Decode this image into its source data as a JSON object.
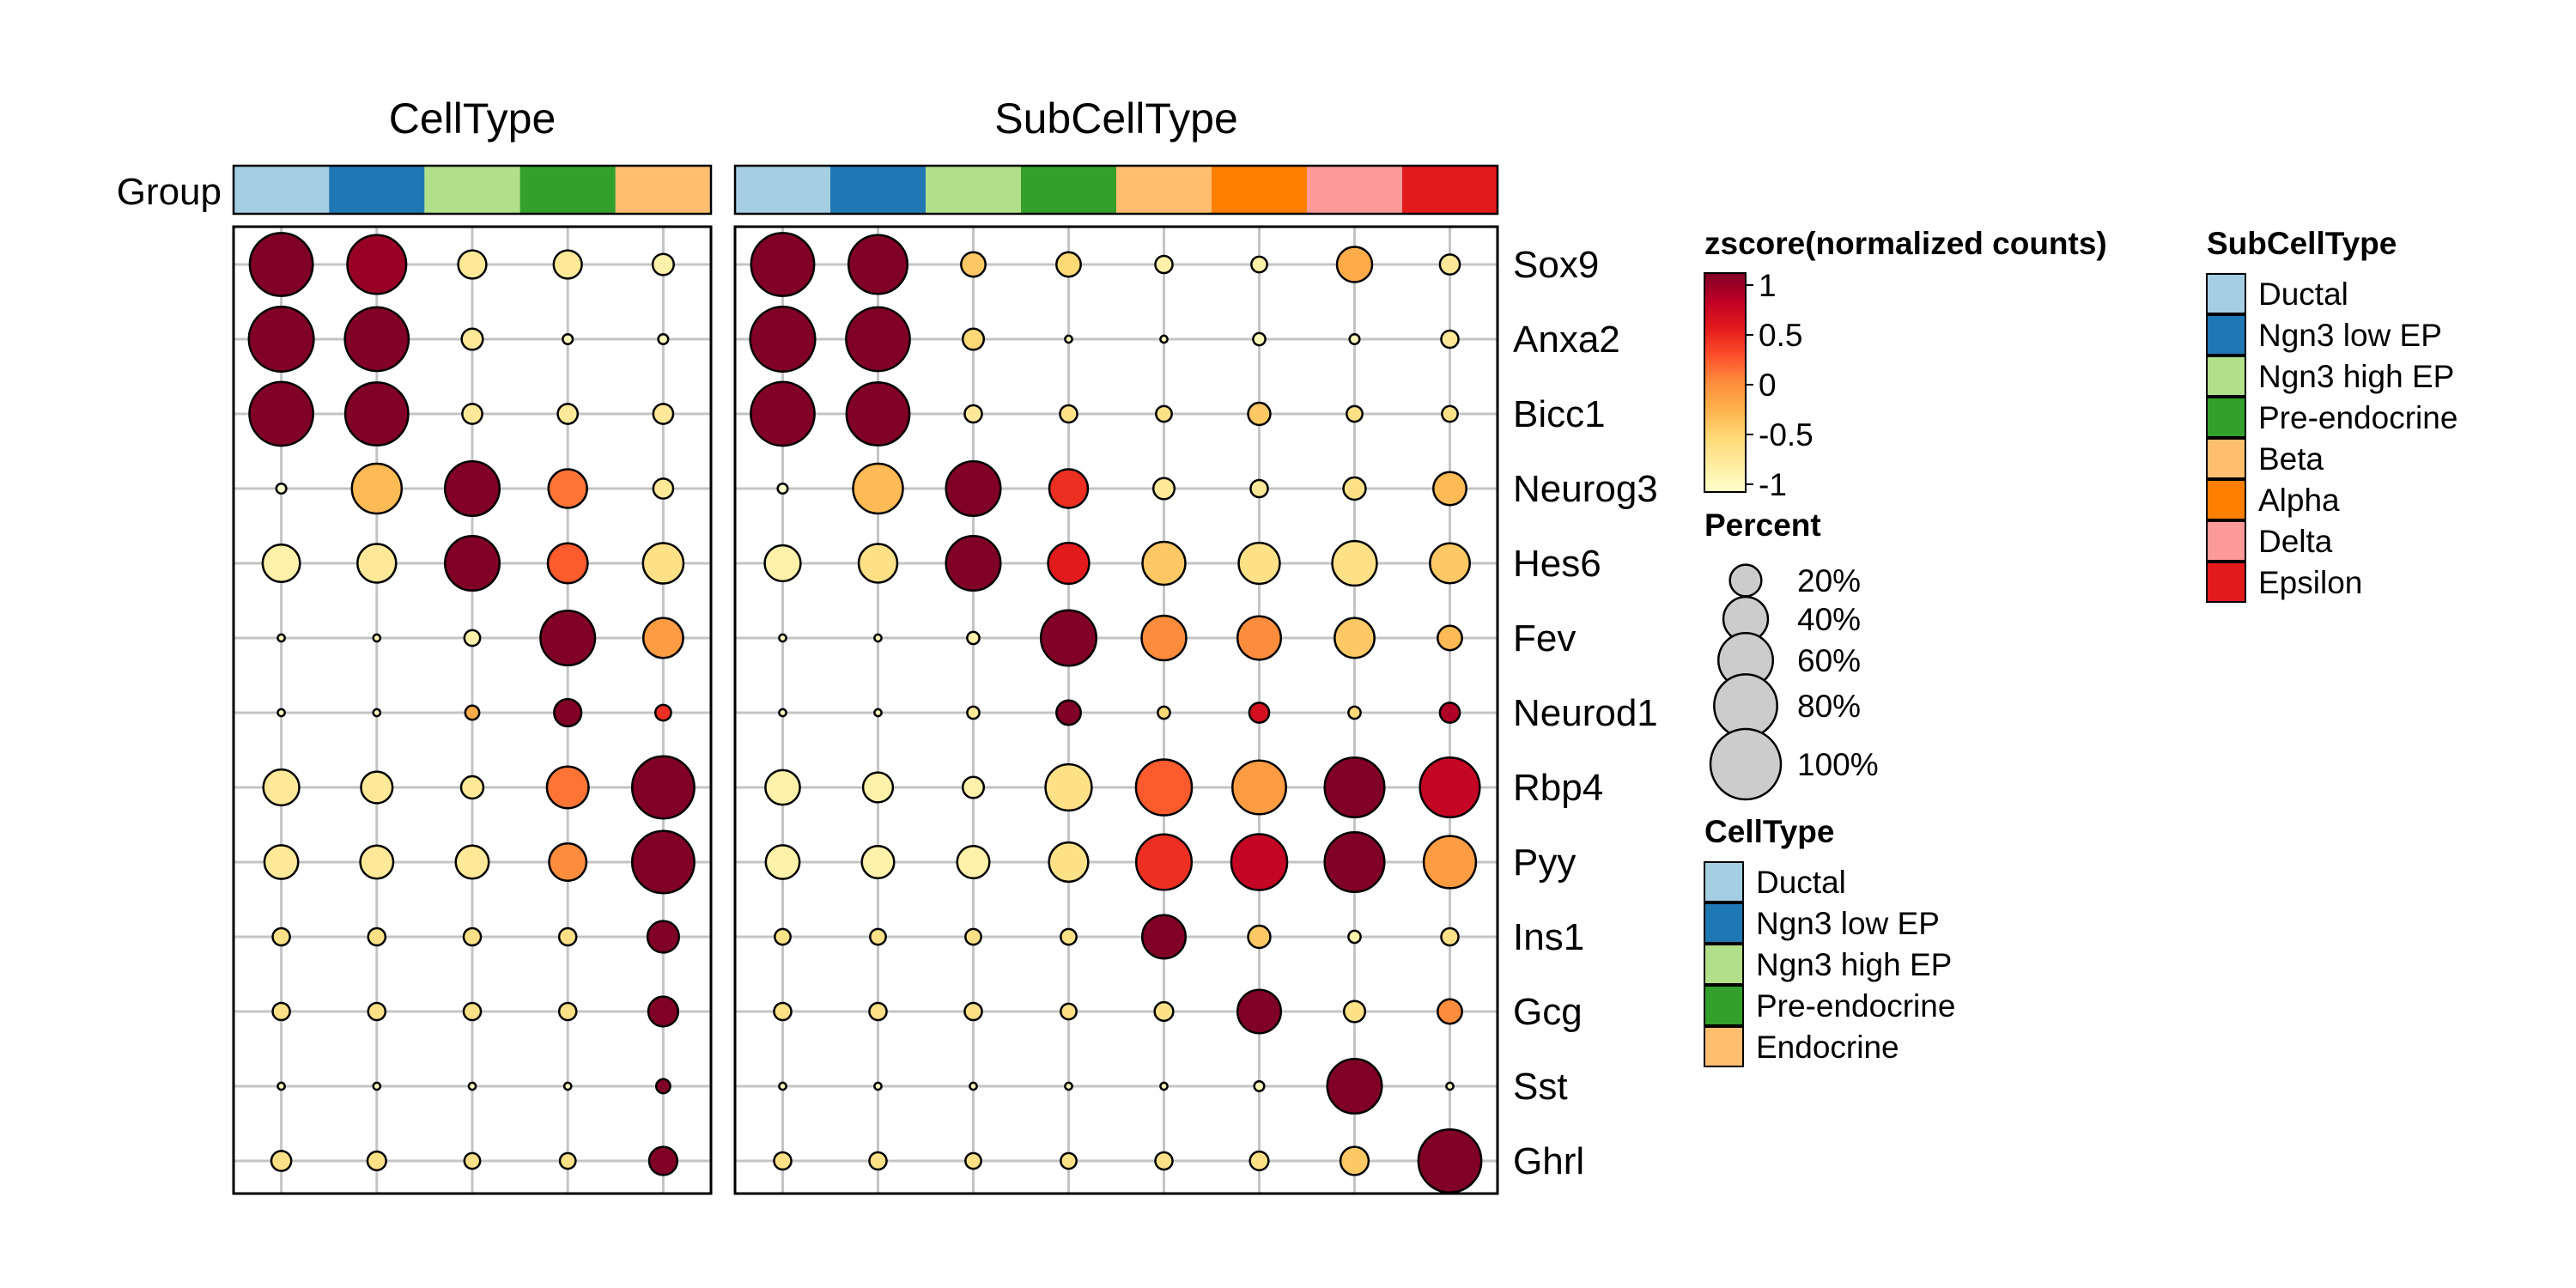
{
  "chart_data": {
    "type": "dotplot",
    "row_annotation_label": "Group",
    "genes": [
      "Sox9",
      "Anxa2",
      "Bicc1",
      "Neurog3",
      "Hes6",
      "Fev",
      "Neurod1",
      "Rbp4",
      "Pyy",
      "Ins1",
      "Gcg",
      "Sst",
      "Ghrl"
    ],
    "panels": [
      {
        "title": "CellType",
        "groups": [
          "Ductal",
          "Ngn3 low EP",
          "Ngn3 high EP",
          "Pre-endocrine",
          "Endocrine"
        ],
        "group_colors": [
          "#A6CEE3",
          "#1F78B4",
          "#B2DF8A",
          "#33A02C",
          "#FDBF6F"
        ],
        "percent": [
          [
            80,
            70,
            16,
            16,
            9
          ],
          [
            85,
            82,
            9,
            2,
            2
          ],
          [
            82,
            80,
            8,
            8,
            8
          ],
          [
            2,
            50,
            60,
            30,
            8
          ],
          [
            28,
            30,
            60,
            32,
            33
          ],
          [
            1,
            1,
            5,
            60,
            32
          ],
          [
            1,
            1,
            4,
            15,
            5
          ],
          [
            26,
            20,
            10,
            35,
            78
          ],
          [
            23,
            22,
            22,
            28,
            78
          ],
          [
            6,
            6,
            6,
            6,
            20
          ],
          [
            6,
            6,
            6,
            6,
            18
          ],
          [
            1,
            1,
            1,
            1,
            4
          ],
          [
            8,
            7,
            5,
            5,
            16
          ]
        ],
        "zscore": [
          [
            1.0,
            0.9,
            -0.7,
            -0.7,
            -0.8
          ],
          [
            1.0,
            1.0,
            -0.7,
            -0.9,
            -0.9
          ],
          [
            1.0,
            1.0,
            -0.7,
            -0.7,
            -0.7
          ],
          [
            -1.0,
            -0.3,
            1.0,
            0.1,
            -0.7
          ],
          [
            -0.8,
            -0.7,
            1.0,
            0.2,
            -0.6
          ],
          [
            -0.9,
            -0.9,
            -0.8,
            1.0,
            -0.1
          ],
          [
            -0.9,
            -0.9,
            -0.2,
            1.0,
            0.4
          ],
          [
            -0.7,
            -0.7,
            -0.7,
            0.1,
            1.0
          ],
          [
            -0.7,
            -0.7,
            -0.7,
            0.0,
            1.0
          ],
          [
            -0.6,
            -0.6,
            -0.6,
            -0.6,
            1.0
          ],
          [
            -0.6,
            -0.6,
            -0.6,
            -0.6,
            1.0
          ],
          [
            -0.9,
            -0.9,
            -0.9,
            -0.9,
            1.0
          ],
          [
            -0.6,
            -0.6,
            -0.6,
            -0.6,
            1.0
          ]
        ]
      },
      {
        "title": "SubCellType",
        "groups": [
          "Ductal",
          "Ngn3 low EP",
          "Ngn3 high EP",
          "Pre-endocrine",
          "Beta",
          "Alpha",
          "Delta",
          "Epsilon"
        ],
        "group_colors": [
          "#A6CEE3",
          "#1F78B4",
          "#B2DF8A",
          "#33A02C",
          "#FDBF6F",
          "#FF7F00",
          "#FB9A99",
          "#E31A1C"
        ],
        "percent": [
          [
            80,
            70,
            12,
            12,
            6,
            5,
            25,
            8
          ],
          [
            85,
            82,
            9,
            1,
            1,
            3,
            2,
            6
          ],
          [
            82,
            80,
            6,
            6,
            5,
            10,
            5,
            5
          ],
          [
            2,
            50,
            60,
            30,
            9,
            6,
            10,
            22
          ],
          [
            26,
            30,
            60,
            34,
            37,
            34,
            40,
            32
          ],
          [
            1,
            1,
            3,
            62,
            40,
            38,
            32,
            12
          ],
          [
            1,
            1,
            3,
            12,
            3,
            8,
            3,
            8
          ],
          [
            24,
            18,
            9,
            43,
            63,
            58,
            72,
            72
          ],
          [
            23,
            21,
            21,
            31,
            62,
            63,
            72,
            55
          ],
          [
            5,
            5,
            5,
            5,
            38,
            10,
            3,
            6
          ],
          [
            6,
            6,
            6,
            5,
            7,
            38,
            9,
            12
          ],
          [
            1,
            1,
            1,
            1,
            1,
            2,
            60,
            1
          ],
          [
            6,
            6,
            5,
            5,
            6,
            7,
            16,
            80
          ]
        ],
        "zscore": [
          [
            1.0,
            1.0,
            -0.4,
            -0.5,
            -0.8,
            -0.8,
            -0.2,
            -0.7
          ],
          [
            1.0,
            1.0,
            -0.5,
            -0.9,
            -0.9,
            -0.9,
            -0.9,
            -0.7
          ],
          [
            1.0,
            1.0,
            -0.7,
            -0.6,
            -0.6,
            -0.4,
            -0.6,
            -0.6
          ],
          [
            -1.0,
            -0.3,
            1.0,
            0.4,
            -0.7,
            -0.7,
            -0.6,
            -0.3
          ],
          [
            -0.8,
            -0.6,
            1.0,
            0.5,
            -0.4,
            -0.6,
            -0.6,
            -0.4
          ],
          [
            -0.9,
            -0.9,
            -0.8,
            1.0,
            0.0,
            0.0,
            -0.4,
            -0.3
          ],
          [
            -0.9,
            -0.9,
            -0.7,
            1.0,
            -0.5,
            0.6,
            -0.5,
            0.8
          ],
          [
            -0.8,
            -0.8,
            -0.8,
            -0.6,
            0.2,
            -0.1,
            1.0,
            0.7
          ],
          [
            -0.8,
            -0.8,
            -0.8,
            -0.6,
            0.4,
            0.7,
            1.0,
            -0.1
          ],
          [
            -0.6,
            -0.6,
            -0.6,
            -0.6,
            1.0,
            -0.4,
            -0.8,
            -0.6
          ],
          [
            -0.6,
            -0.6,
            -0.6,
            -0.6,
            -0.6,
            1.0,
            -0.6,
            0.0
          ],
          [
            -0.9,
            -0.9,
            -0.9,
            -0.9,
            -0.9,
            -0.9,
            1.0,
            -0.9
          ],
          [
            -0.6,
            -0.6,
            -0.6,
            -0.6,
            -0.6,
            -0.6,
            -0.4,
            1.0
          ]
        ]
      }
    ],
    "color_scale": {
      "title": "zscore(normalized counts)",
      "domain": [
        -1,
        1
      ],
      "stops": [
        "#FFFFCC",
        "#FFEDA0",
        "#FED976",
        "#FEB24C",
        "#FD8D3C",
        "#FC4E2A",
        "#E31A1C",
        "#BD0026",
        "#800026"
      ],
      "tick_labels": [
        "1",
        "0.5",
        "0",
        "-0.5",
        "-1"
      ],
      "tick_values": [
        1,
        0.5,
        0,
        -0.5,
        -1
      ]
    },
    "size_legend": {
      "title": "Percent",
      "labels": [
        "20%",
        "40%",
        "60%",
        "80%",
        "100%"
      ],
      "values": [
        20,
        40,
        60,
        80,
        100
      ]
    },
    "legends": [
      {
        "title": "SubCellType",
        "items": [
          "Ductal",
          "Ngn3 low EP",
          "Ngn3 high EP",
          "Pre-endocrine",
          "Beta",
          "Alpha",
          "Delta",
          "Epsilon"
        ],
        "colors": [
          "#A6CEE3",
          "#1F78B4",
          "#B2DF8A",
          "#33A02C",
          "#FDBF6F",
          "#FF7F00",
          "#FB9A99",
          "#E31A1C"
        ]
      },
      {
        "title": "CellType",
        "items": [
          "Ductal",
          "Ngn3 low EP",
          "Ngn3 high EP",
          "Pre-endocrine",
          "Endocrine"
        ],
        "colors": [
          "#A6CEE3",
          "#1F78B4",
          "#B2DF8A",
          "#33A02C",
          "#FDBF6F"
        ]
      }
    ]
  }
}
